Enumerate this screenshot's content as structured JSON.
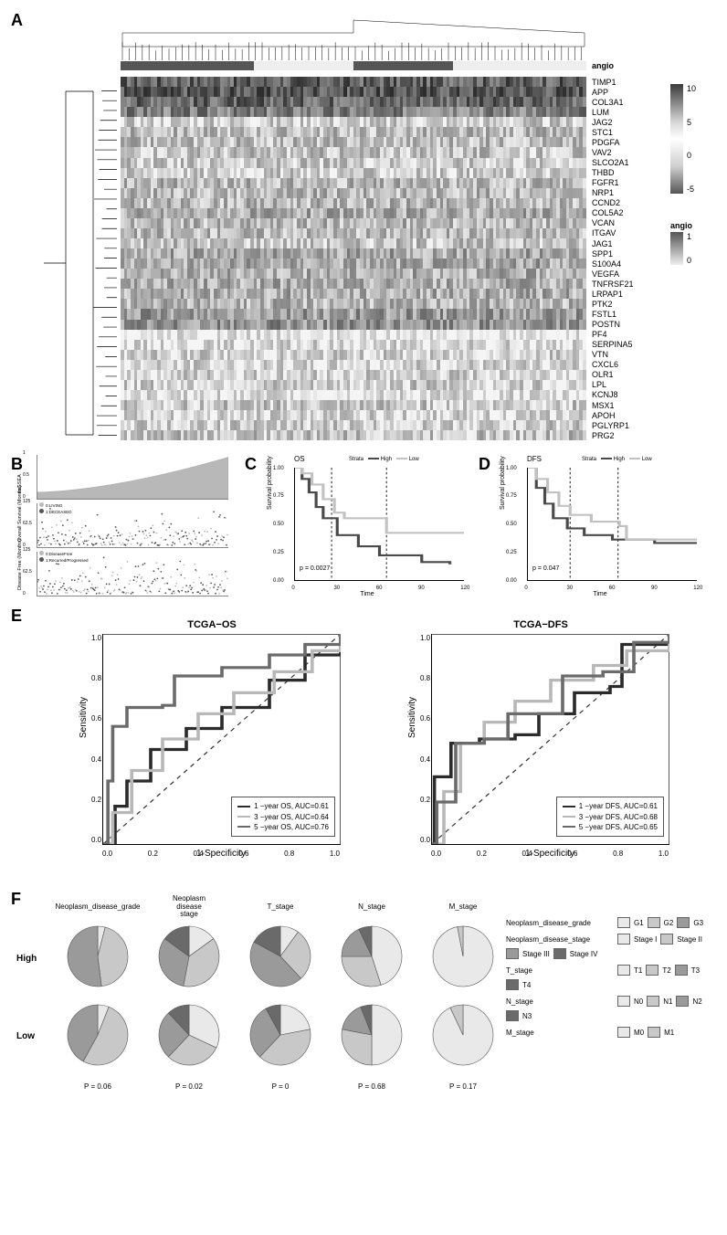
{
  "palette": {
    "heat_high": "#3a3a3a",
    "heat_mid": "#f5f5f5",
    "heat_low": "#555555",
    "angio_1": "#555555",
    "angio_0": "#eeeeee",
    "roc_1yr": "#2b2b2b",
    "roc_3yr": "#b8b8b8",
    "roc_5yr": "#6b6b6b",
    "km_high": "#4a4a4a",
    "km_low": "#c2c2c2",
    "pie_shades": [
      "#e9e9e9",
      "#c8c8c8",
      "#9a9a9a",
      "#6a6a6a"
    ]
  },
  "panel_labels": {
    "A": "A",
    "B": "B",
    "C": "C",
    "D": "D",
    "E": "E",
    "F": "F"
  },
  "panelA": {
    "type": "heatmap",
    "angio_label": "angio",
    "genes": [
      "TIMP1",
      "APP",
      "COL3A1",
      "LUM",
      "JAG2",
      "STC1",
      "PDGFA",
      "VAV2",
      "SLCO2A1",
      "THBD",
      "FGFR1",
      "NRP1",
      "CCND2",
      "COL5A2",
      "VCAN",
      "ITGAV",
      "JAG1",
      "SPP1",
      "S100A4",
      "VEGFA",
      "TNFRSF21",
      "LRPAP1",
      "PTK2",
      "FSTL1",
      "POSTN",
      "PF4",
      "SERPINA5",
      "VTN",
      "CXCL6",
      "OLR1",
      "LPL",
      "KCNJ8",
      "MSX1",
      "APOH",
      "PGLYRP1",
      "PRG2"
    ],
    "row_base_intensity": [
      0.75,
      0.8,
      0.72,
      0.58,
      0.2,
      0.28,
      0.28,
      0.25,
      0.22,
      0.2,
      0.3,
      0.3,
      0.3,
      0.35,
      0.3,
      0.3,
      0.25,
      0.38,
      0.38,
      0.35,
      0.35,
      0.35,
      0.32,
      0.45,
      0.48,
      0.05,
      0.12,
      0.18,
      0.15,
      0.18,
      0.2,
      0.1,
      0.22,
      0.15,
      0.2,
      0.25
    ],
    "n_columns": 140,
    "angio_group_breaks": [
      0,
      40,
      70,
      100,
      140
    ],
    "angio_group_vals": [
      1,
      0,
      1,
      0
    ],
    "legend_continuous": {
      "ticks": [
        "10",
        "5",
        "0",
        "-5"
      ]
    },
    "legend_angio": {
      "title": "angio",
      "ticks": [
        "1",
        "0"
      ]
    }
  },
  "panelB": {
    "rows": [
      {
        "ylabel": "ssGSEA",
        "range": [
          0,
          1
        ],
        "series": "sorted-bar",
        "legend": null
      },
      {
        "ylabel": "Overall Survival (Months)",
        "range": [
          0,
          125
        ],
        "series": "scatter",
        "legend": [
          "0:LIVING",
          "1:DECEASED"
        ]
      },
      {
        "ylabel": "Disease Free (Months)",
        "range": [
          0,
          125
        ],
        "series": "scatter",
        "legend": [
          "0:DiseaseFree",
          "1:Recurred/Progressed"
        ]
      }
    ]
  },
  "panelC": {
    "title": "OS",
    "strata_label": "Strata",
    "strata": [
      "High",
      "Low"
    ],
    "ylabel": "Survival probability",
    "xlabel": "Time",
    "xlim": [
      0,
      120
    ],
    "ylim": [
      0,
      1
    ],
    "yticks": [
      "0.00",
      "0.25",
      "0.50",
      "0.75",
      "1.00"
    ],
    "xticks": [
      "0",
      "30",
      "60",
      "90",
      "120"
    ],
    "pval": "p = 0.0027",
    "high_curve": [
      [
        0,
        1.0
      ],
      [
        5,
        0.9
      ],
      [
        10,
        0.78
      ],
      [
        15,
        0.65
      ],
      [
        20,
        0.55
      ],
      [
        30,
        0.4
      ],
      [
        45,
        0.3
      ],
      [
        60,
        0.22
      ],
      [
        90,
        0.16
      ],
      [
        110,
        0.14
      ]
    ],
    "low_curve": [
      [
        0,
        1.0
      ],
      [
        5,
        0.95
      ],
      [
        12,
        0.85
      ],
      [
        20,
        0.72
      ],
      [
        28,
        0.6
      ],
      [
        35,
        0.55
      ],
      [
        60,
        0.55
      ],
      [
        65,
        0.42
      ],
      [
        100,
        0.42
      ],
      [
        120,
        0.42
      ]
    ],
    "ref_lines_x": [
      26,
      65
    ]
  },
  "panelD": {
    "title": "DFS",
    "strata_label": "Strata",
    "strata": [
      "High",
      "Low"
    ],
    "ylabel": "Survival probability",
    "xlabel": "Time",
    "xlim": [
      0,
      120
    ],
    "ylim": [
      0,
      1
    ],
    "yticks": [
      "0.00",
      "0.25",
      "0.50",
      "0.75",
      "1.00"
    ],
    "xticks": [
      "0",
      "30",
      "60",
      "90",
      "120"
    ],
    "pval": "p = 0.047",
    "high_curve": [
      [
        0,
        1.0
      ],
      [
        6,
        0.82
      ],
      [
        12,
        0.68
      ],
      [
        18,
        0.55
      ],
      [
        28,
        0.46
      ],
      [
        40,
        0.4
      ],
      [
        60,
        0.36
      ],
      [
        90,
        0.33
      ],
      [
        120,
        0.33
      ]
    ],
    "low_curve": [
      [
        0,
        1.0
      ],
      [
        6,
        0.9
      ],
      [
        14,
        0.78
      ],
      [
        22,
        0.66
      ],
      [
        30,
        0.58
      ],
      [
        45,
        0.52
      ],
      [
        65,
        0.48
      ],
      [
        70,
        0.36
      ],
      [
        120,
        0.36
      ]
    ],
    "ref_lines_x": [
      30,
      64
    ]
  },
  "panelE": {
    "left": {
      "title": "TCGA−OS",
      "ylabel": "Sensitivity",
      "xlabel": "1-Specificity",
      "ticks": [
        "0.0",
        "0.2",
        "0.4",
        "0.6",
        "0.8",
        "1.0"
      ],
      "legend": [
        {
          "label": "1 −year OS, AUC=0.61",
          "colorKey": "roc_1yr"
        },
        {
          "label": "3 −year OS, AUC=0.64",
          "colorKey": "roc_3yr"
        },
        {
          "label": "5 −year OS, AUC=0.76",
          "colorKey": "roc_5yr"
        }
      ],
      "curves": {
        "roc_1yr": [
          [
            0,
            0
          ],
          [
            0.05,
            0.18
          ],
          [
            0.1,
            0.3
          ],
          [
            0.2,
            0.45
          ],
          [
            0.35,
            0.55
          ],
          [
            0.5,
            0.65
          ],
          [
            0.7,
            0.78
          ],
          [
            0.85,
            0.9
          ],
          [
            1,
            1
          ]
        ],
        "roc_3yr": [
          [
            0,
            0
          ],
          [
            0.04,
            0.15
          ],
          [
            0.12,
            0.35
          ],
          [
            0.25,
            0.5
          ],
          [
            0.4,
            0.62
          ],
          [
            0.55,
            0.72
          ],
          [
            0.72,
            0.82
          ],
          [
            0.88,
            0.92
          ],
          [
            1,
            1
          ]
        ],
        "roc_5yr": [
          [
            0,
            0
          ],
          [
            0.02,
            0.3
          ],
          [
            0.04,
            0.56
          ],
          [
            0.1,
            0.65
          ],
          [
            0.25,
            0.66
          ],
          [
            0.3,
            0.8
          ],
          [
            0.5,
            0.84
          ],
          [
            0.7,
            0.9
          ],
          [
            0.85,
            0.95
          ],
          [
            1,
            1
          ]
        ]
      }
    },
    "right": {
      "title": "TCGA−DFS",
      "ylabel": "Sensitivity",
      "xlabel": "1-Specificity",
      "ticks": [
        "0.0",
        "0.2",
        "0.4",
        "0.6",
        "0.8",
        "1.0"
      ],
      "legend": [
        {
          "label": "1 −year DFS, AUC=0.61",
          "colorKey": "roc_1yr"
        },
        {
          "label": "3 −year DFS, AUC=0.68",
          "colorKey": "roc_3yr"
        },
        {
          "label": "5 −year DFS, AUC=0.65",
          "colorKey": "roc_5yr"
        }
      ],
      "curves": {
        "roc_1yr": [
          [
            0,
            0
          ],
          [
            0.01,
            0.32
          ],
          [
            0.08,
            0.48
          ],
          [
            0.2,
            0.5
          ],
          [
            0.35,
            0.52
          ],
          [
            0.45,
            0.62
          ],
          [
            0.6,
            0.72
          ],
          [
            0.75,
            0.75
          ],
          [
            0.8,
            0.95
          ],
          [
            1,
            1
          ]
        ],
        "roc_3yr": [
          [
            0,
            0
          ],
          [
            0.05,
            0.25
          ],
          [
            0.12,
            0.48
          ],
          [
            0.22,
            0.58
          ],
          [
            0.35,
            0.68
          ],
          [
            0.5,
            0.78
          ],
          [
            0.68,
            0.85
          ],
          [
            0.82,
            0.92
          ],
          [
            1,
            1
          ]
        ],
        "roc_5yr": [
          [
            0,
            0
          ],
          [
            0.02,
            0.2
          ],
          [
            0.1,
            0.48
          ],
          [
            0.22,
            0.5
          ],
          [
            0.32,
            0.62
          ],
          [
            0.48,
            0.62
          ],
          [
            0.55,
            0.8
          ],
          [
            0.72,
            0.82
          ],
          [
            0.85,
            0.96
          ],
          [
            1,
            1
          ]
        ]
      }
    }
  },
  "panelF": {
    "row_heads": [
      "High",
      "Low"
    ],
    "columns": [
      {
        "head": "Neoplasm_disease_grade",
        "pval": "P = 0.06",
        "high": [
          0.04,
          0.44,
          0.52
        ],
        "low": [
          0.06,
          0.52,
          0.42
        ]
      },
      {
        "head": "Neoplasm\ndisease\nstage",
        "pval": "P = 0.02",
        "high": [
          0.15,
          0.38,
          0.32,
          0.15
        ],
        "low": [
          0.32,
          0.3,
          0.26,
          0.12
        ]
      },
      {
        "head": "T_stage",
        "pval": "P = 0",
        "high": [
          0.1,
          0.28,
          0.45,
          0.17
        ],
        "low": [
          0.22,
          0.4,
          0.3,
          0.08
        ]
      },
      {
        "head": "N_stage",
        "pval": "P = 0.68",
        "high": [
          0.45,
          0.3,
          0.18,
          0.07
        ],
        "low": [
          0.5,
          0.28,
          0.16,
          0.06
        ]
      },
      {
        "head": "M_stage",
        "pval": "P = 0.17",
        "high": [
          0.97,
          0.03
        ],
        "low": [
          0.93,
          0.07
        ]
      }
    ],
    "legends": [
      {
        "label": "Neoplasm_disease_grade",
        "cats": [
          "G1",
          "G2",
          "G3"
        ]
      },
      {
        "label": "Neoplasm_disease_stage",
        "cats": [
          "Stage I",
          "Stage II",
          "Stage III",
          "Stage IV"
        ]
      },
      {
        "label": "T_stage",
        "cats": [
          "T1",
          "T2",
          "T3",
          "T4"
        ]
      },
      {
        "label": "N_stage",
        "cats": [
          "N0",
          "N1",
          "N2",
          "N3"
        ]
      },
      {
        "label": "M_stage",
        "cats": [
          "M0",
          "M1"
        ]
      }
    ]
  }
}
